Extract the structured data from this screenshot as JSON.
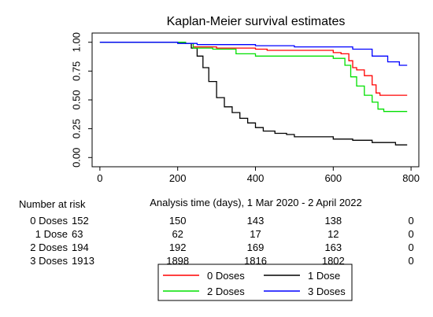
{
  "chart_data": {
    "type": "line",
    "title": "Kaplan-Meier survival estimates",
    "xlabel": "Analysis time (days), 1 Mar 2020 -  2 April 2022",
    "ylabel": "",
    "xlim": [
      -20,
      820
    ],
    "ylim": [
      -0.08,
      1.08
    ],
    "x_ticks": [
      0,
      200,
      400,
      600,
      800
    ],
    "y_ticks": [
      0.0,
      0.25,
      0.5,
      0.75,
      1.0
    ],
    "y_tick_labels": [
      "0.00",
      "0.25",
      "0.50",
      "0.75",
      "1.00"
    ],
    "grid": false,
    "legend_position": "bottom-center",
    "series": [
      {
        "name": "0 Doses",
        "color": "#ff0000",
        "x": [
          0,
          220,
          240,
          300,
          400,
          430,
          560,
          600,
          620,
          640,
          650,
          660,
          680,
          700,
          710,
          720,
          790
        ],
        "y": [
          1.0,
          0.99,
          0.96,
          0.95,
          0.94,
          0.93,
          0.93,
          0.91,
          0.9,
          0.84,
          0.78,
          0.76,
          0.71,
          0.63,
          0.56,
          0.54,
          0.54
        ]
      },
      {
        "name": "1 Dose",
        "color": "#000000",
        "x": [
          0,
          220,
          235,
          250,
          265,
          280,
          300,
          320,
          340,
          360,
          380,
          400,
          420,
          450,
          480,
          500,
          560,
          600,
          650,
          700,
          760,
          790
        ],
        "y": [
          1.0,
          0.99,
          0.95,
          0.88,
          0.78,
          0.66,
          0.52,
          0.44,
          0.39,
          0.34,
          0.3,
          0.26,
          0.23,
          0.21,
          0.2,
          0.18,
          0.18,
          0.16,
          0.15,
          0.13,
          0.11,
          0.11
        ]
      },
      {
        "name": "2 Doses",
        "color": "#00e000",
        "x": [
          0,
          220,
          240,
          290,
          350,
          400,
          560,
          600,
          630,
          645,
          660,
          680,
          700,
          715,
          730,
          790
        ],
        "y": [
          1.0,
          0.99,
          0.95,
          0.94,
          0.9,
          0.88,
          0.88,
          0.86,
          0.8,
          0.7,
          0.62,
          0.54,
          0.48,
          0.42,
          0.4,
          0.4
        ]
      },
      {
        "name": "3 Doses",
        "color": "#0000ff",
        "x": [
          0,
          200,
          250,
          400,
          500,
          600,
          650,
          700,
          740,
          770,
          790
        ],
        "y": [
          1.0,
          0.99,
          0.98,
          0.97,
          0.96,
          0.96,
          0.94,
          0.88,
          0.83,
          0.8,
          0.8
        ]
      }
    ],
    "risk_table": {
      "title": "Number at risk",
      "times": [
        0,
        200,
        400,
        600,
        800
      ],
      "rows": [
        {
          "label": "0 Doses",
          "values": [
            "152",
            "150",
            "143",
            "138",
            "0"
          ]
        },
        {
          "label": "1 Dose",
          "values": [
            "63",
            "62",
            "17",
            "12",
            "0"
          ]
        },
        {
          "label": "2 Doses",
          "values": [
            "194",
            "192",
            "169",
            "163",
            "0"
          ]
        },
        {
          "label": "3 Doses",
          "values": [
            "1913",
            "1898",
            "1816",
            "1802",
            "0"
          ]
        }
      ]
    }
  }
}
